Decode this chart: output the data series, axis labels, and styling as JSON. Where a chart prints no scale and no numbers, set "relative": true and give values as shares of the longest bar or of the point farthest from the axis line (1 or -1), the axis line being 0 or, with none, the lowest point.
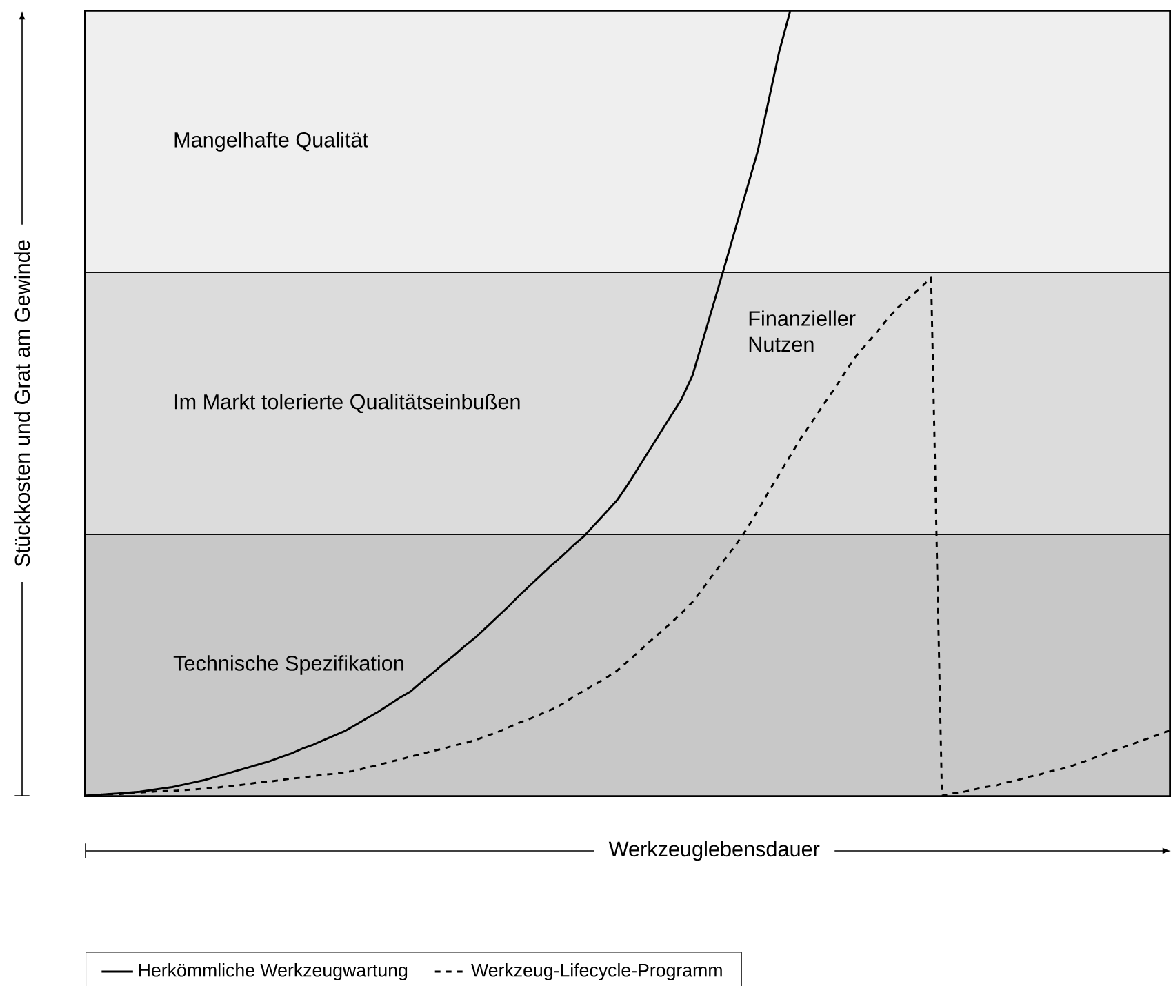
{
  "chart_data": {
    "type": "line",
    "relative": true,
    "xlabel": "Werkzeuglebensdauer",
    "ylabel": "Stückkosten und Grat am Gewinde",
    "legend": "bottom",
    "categories": [
      null,
      null,
      null,
      null,
      null,
      null,
      null,
      null,
      null,
      null,
      null,
      null,
      null,
      null,
      null,
      null,
      null,
      null,
      null,
      null,
      null,
      null,
      null,
      null,
      null,
      null,
      null,
      null,
      null,
      null,
      null,
      null,
      null,
      null,
      null,
      null,
      null,
      null,
      null,
      null,
      null,
      null,
      null,
      null,
      null,
      null,
      null,
      null,
      null,
      null,
      null,
      null,
      null,
      null,
      null,
      null,
      null,
      null,
      null,
      null,
      null,
      null,
      null,
      null,
      null,
      null,
      null,
      null,
      null,
      null,
      null,
      null,
      null,
      null,
      null,
      null,
      null,
      null,
      null,
      null,
      null,
      null,
      null,
      null,
      null,
      null,
      null,
      null,
      null,
      null,
      null,
      null,
      null,
      null,
      null,
      null,
      null,
      null,
      null,
      null,
      null
    ],
    "series": [
      {
        "name": "Herkömmliche Werkzeugwartung",
        "color": "#000000",
        "line_style": "solid",
        "values": [
          0,
          0.001,
          0.002,
          0.003,
          0.004,
          0.005,
          0.007,
          0.009,
          0.011,
          0.014,
          0.017,
          0.02,
          0.024,
          0.028,
          0.032,
          0.036,
          0.04,
          0.044,
          0.049,
          0.054,
          0.06,
          0.065,
          0.071,
          0.077,
          0.083,
          0.091,
          0.099,
          0.107,
          0.116,
          0.125,
          0.133,
          0.145,
          0.156,
          0.168,
          0.179,
          0.191,
          0.202,
          0.215,
          0.228,
          0.241,
          0.255,
          0.268,
          0.281,
          0.294,
          0.306,
          0.319,
          0.331,
          0.346,
          0.361,
          0.376,
          0.396,
          0.418,
          0.44,
          0.462,
          0.484,
          0.506,
          0.536,
          0.583,
          0.63,
          0.677,
          0.725,
          0.773,
          0.821,
          0.885,
          0.949,
          1.0,
          null,
          null,
          null,
          null,
          null,
          null,
          null,
          null,
          null,
          null,
          null,
          null,
          null,
          null,
          null,
          null,
          null,
          null,
          null,
          null,
          null,
          null,
          null,
          null,
          null,
          null,
          null,
          null,
          null,
          null,
          null,
          null,
          null,
          null,
          null
        ]
      },
      {
        "name": "Werkzeug-Lifecycle-Programm",
        "color": "#000000",
        "line_style": "dashed",
        "values": [
          0,
          0.001,
          0.002,
          0.002,
          0.003,
          0.004,
          0.005,
          0.006,
          0.006,
          0.007,
          0.008,
          0.009,
          0.01,
          0.012,
          0.013,
          0.015,
          0.017,
          0.018,
          0.02,
          0.022,
          0.023,
          0.025,
          0.027,
          0.028,
          0.03,
          0.032,
          0.036,
          0.039,
          0.043,
          0.046,
          0.05,
          0.053,
          0.057,
          0.06,
          0.064,
          0.067,
          0.071,
          0.076,
          0.081,
          0.087,
          0.093,
          0.098,
          0.104,
          0.11,
          0.117,
          0.126,
          0.134,
          0.142,
          0.15,
          0.159,
          0.171,
          0.183,
          0.196,
          0.208,
          0.22,
          0.233,
          0.247,
          0.265,
          0.284,
          0.302,
          0.32,
          0.34,
          0.363,
          0.387,
          0.41,
          0.433,
          0.456,
          0.476,
          0.497,
          0.517,
          0.538,
          0.559,
          0.575,
          0.591,
          0.608,
          0.623,
          0.635,
          0.647,
          0.66,
          0,
          0.003,
          0.005,
          0.008,
          0.011,
          0.013,
          0.017,
          0.02,
          0.024,
          0.027,
          0.031,
          0.034,
          0.038,
          0.043,
          0.048,
          0.053,
          0.058,
          0.063,
          0.068,
          0.073,
          0.078,
          0.083
        ]
      }
    ],
    "bands": [
      {
        "axis": "y",
        "from": 0,
        "to": 0.333,
        "label": "Technische Spezifikation",
        "color": "#c8c8c8"
      },
      {
        "axis": "y",
        "from": 0.333,
        "to": 0.667,
        "label": "Im Markt tolerierte Qualitätseinbußen",
        "color": "#dcdcdc"
      },
      {
        "axis": "y",
        "from": 0.667,
        "to": 1,
        "label": "Mangelhafte Qualität",
        "color": "#efefef"
      }
    ],
    "annotations": [
      "Finanzieller Nutzen"
    ]
  }
}
